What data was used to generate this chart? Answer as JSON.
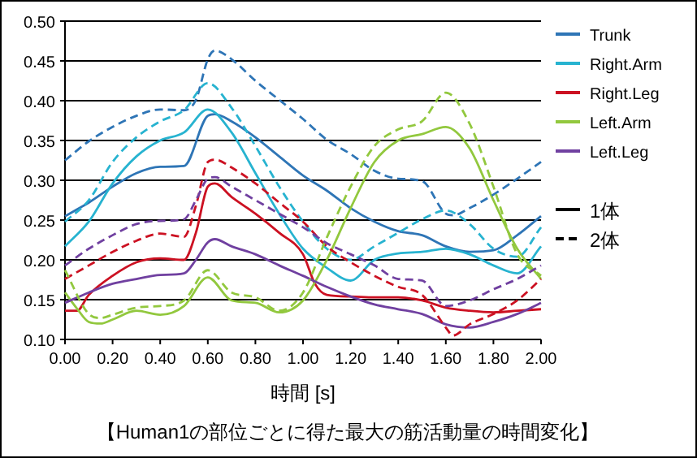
{
  "chart_data": {
    "type": "line",
    "xlabel": "時間 [s]",
    "xlim": [
      0,
      2
    ],
    "xticks": [
      {
        "value": 0,
        "label": "0.00"
      },
      {
        "value": 0.2,
        "label": "0.20"
      },
      {
        "value": 0.4,
        "label": "0.40"
      },
      {
        "value": 0.6,
        "label": "0.60"
      },
      {
        "value": 0.8,
        "label": "0.80"
      },
      {
        "value": 1,
        "label": "1.00"
      },
      {
        "value": 1.2,
        "label": "1.20"
      },
      {
        "value": 1.4,
        "label": "1.40"
      },
      {
        "value": 1.6,
        "label": "1.60"
      },
      {
        "value": 1.8,
        "label": "1.80"
      },
      {
        "value": 2,
        "label": "2.00"
      }
    ],
    "ylim": [
      0.1,
      0.5
    ],
    "yticks": [
      {
        "value": 0.1,
        "label": "0.10"
      },
      {
        "value": 0.15,
        "label": "0.15"
      },
      {
        "value": 0.2,
        "label": "0.20"
      },
      {
        "value": 0.25,
        "label": "0.25"
      },
      {
        "value": 0.3,
        "label": "0.30"
      },
      {
        "value": 0.35,
        "label": "0.35"
      },
      {
        "value": 0.4,
        "label": "0.40"
      },
      {
        "value": 0.45,
        "label": "0.45"
      },
      {
        "value": 0.5,
        "label": "0.50"
      }
    ],
    "grid": "y",
    "legend": "right",
    "annotations": [
      "1体",
      "2体",
      "【Human1の部位ごとに得た最大の筋活動量の時間変化】"
    ],
    "series": [
      {
        "name": "Trunk",
        "color": "#2e75b6",
        "line_style": "solid",
        "x": [
          0,
          0.1,
          0.2,
          0.3,
          0.4,
          0.5,
          0.6,
          0.63,
          0.7,
          0.8,
          0.9,
          1.0,
          1.1,
          1.2,
          1.3,
          1.4,
          1.5,
          1.6,
          1.7,
          1.8,
          1.9,
          2.0
        ],
        "values": [
          0.255,
          0.272,
          0.292,
          0.309,
          0.317,
          0.318,
          0.381,
          0.383,
          0.374,
          0.354,
          0.33,
          0.306,
          0.287,
          0.265,
          0.248,
          0.236,
          0.231,
          0.217,
          0.21,
          0.212,
          0.231,
          0.255
        ]
      },
      {
        "name": "Right.Arm",
        "color": "#27b3d0",
        "line_style": "solid",
        "x": [
          0,
          0.1,
          0.2,
          0.3,
          0.4,
          0.5,
          0.6,
          0.7,
          0.8,
          0.9,
          1.0,
          1.1,
          1.2,
          1.3,
          1.4,
          1.5,
          1.6,
          1.7,
          1.8,
          1.9,
          2.0
        ],
        "values": [
          0.217,
          0.248,
          0.296,
          0.33,
          0.35,
          0.36,
          0.389,
          0.36,
          0.309,
          0.258,
          0.214,
          0.19,
          0.174,
          0.2,
          0.208,
          0.21,
          0.214,
          0.207,
          0.193,
          0.183,
          0.217
        ]
      },
      {
        "name": "Right.Leg",
        "color": "#cc1122",
        "line_style": "solid",
        "x": [
          0,
          0.05,
          0.1,
          0.2,
          0.3,
          0.4,
          0.5,
          0.55,
          0.6,
          0.63,
          0.7,
          0.8,
          0.9,
          1.0,
          1.05,
          1.1,
          1.2,
          1.3,
          1.4,
          1.5,
          1.6,
          1.7,
          1.8,
          1.9,
          2.0
        ],
        "values": [
          0.136,
          0.136,
          0.156,
          0.18,
          0.197,
          0.202,
          0.2,
          0.234,
          0.292,
          0.296,
          0.279,
          0.258,
          0.234,
          0.207,
          0.17,
          0.156,
          0.154,
          0.153,
          0.153,
          0.149,
          0.14,
          0.136,
          0.134,
          0.136,
          0.138
        ]
      },
      {
        "name": "Left.Arm",
        "color": "#92c83e",
        "line_style": "solid",
        "x": [
          0,
          0.05,
          0.1,
          0.15,
          0.2,
          0.3,
          0.4,
          0.5,
          0.6,
          0.7,
          0.8,
          0.9,
          1.0,
          1.1,
          1.2,
          1.3,
          1.4,
          1.5,
          1.6,
          1.7,
          1.8,
          1.9,
          2.0
        ],
        "values": [
          0.159,
          0.139,
          0.122,
          0.12,
          0.125,
          0.136,
          0.131,
          0.142,
          0.178,
          0.149,
          0.146,
          0.134,
          0.149,
          0.2,
          0.265,
          0.323,
          0.35,
          0.358,
          0.367,
          0.34,
          0.275,
          0.214,
          0.176
        ]
      },
      {
        "name": "Left.Leg",
        "color": "#7040a0",
        "line_style": "solid",
        "x": [
          0,
          0.1,
          0.2,
          0.3,
          0.4,
          0.5,
          0.55,
          0.6,
          0.63,
          0.7,
          0.8,
          0.9,
          1.0,
          1.1,
          1.2,
          1.3,
          1.4,
          1.5,
          1.6,
          1.7,
          1.8,
          1.9,
          2.0
        ],
        "values": [
          0.146,
          0.159,
          0.17,
          0.176,
          0.181,
          0.183,
          0.2,
          0.222,
          0.226,
          0.217,
          0.207,
          0.193,
          0.18,
          0.166,
          0.154,
          0.144,
          0.138,
          0.132,
          0.119,
          0.115,
          0.122,
          0.132,
          0.146
        ]
      },
      {
        "color": "#2e75b6",
        "line_style": "dashed",
        "x": [
          0,
          0.1,
          0.2,
          0.3,
          0.4,
          0.5,
          0.55,
          0.6,
          0.63,
          0.7,
          0.8,
          0.9,
          1.0,
          1.1,
          1.2,
          1.3,
          1.4,
          1.5,
          1.6,
          1.63,
          1.7,
          1.8,
          1.9,
          2.0
        ],
        "values": [
          0.325,
          0.349,
          0.367,
          0.381,
          0.389,
          0.388,
          0.401,
          0.452,
          0.463,
          0.452,
          0.425,
          0.401,
          0.377,
          0.351,
          0.333,
          0.312,
          0.302,
          0.299,
          0.258,
          0.256,
          0.265,
          0.282,
          0.302,
          0.323
        ]
      },
      {
        "color": "#27b3d0",
        "line_style": "dashed",
        "x": [
          0,
          0.1,
          0.2,
          0.3,
          0.4,
          0.5,
          0.6,
          0.7,
          0.8,
          0.9,
          1.0,
          1.1,
          1.2,
          1.3,
          1.4,
          1.5,
          1.6,
          1.7,
          1.8,
          1.9,
          2.0
        ],
        "values": [
          0.248,
          0.275,
          0.323,
          0.354,
          0.374,
          0.388,
          0.422,
          0.391,
          0.343,
          0.292,
          0.248,
          0.214,
          0.2,
          0.217,
          0.234,
          0.251,
          0.262,
          0.245,
          0.214,
          0.204,
          0.241
        ]
      },
      {
        "color": "#cc1122",
        "line_style": "dashed",
        "x": [
          0,
          0.1,
          0.2,
          0.3,
          0.4,
          0.5,
          0.55,
          0.6,
          0.63,
          0.7,
          0.8,
          0.9,
          1.0,
          1.1,
          1.2,
          1.3,
          1.4,
          1.5,
          1.6,
          1.63,
          1.7,
          1.8,
          1.9,
          2.0
        ],
        "values": [
          0.176,
          0.193,
          0.21,
          0.224,
          0.233,
          0.229,
          0.268,
          0.323,
          0.326,
          0.316,
          0.296,
          0.272,
          0.248,
          0.217,
          0.197,
          0.18,
          0.166,
          0.156,
          0.115,
          0.105,
          0.119,
          0.132,
          0.149,
          0.176
        ]
      },
      {
        "color": "#92c83e",
        "line_style": "dashed",
        "x": [
          0,
          0.1,
          0.15,
          0.2,
          0.3,
          0.4,
          0.5,
          0.6,
          0.7,
          0.8,
          0.9,
          1.0,
          1.1,
          1.2,
          1.3,
          1.4,
          1.5,
          1.6,
          1.7,
          1.8,
          1.9,
          2.0
        ],
        "values": [
          0.187,
          0.132,
          0.127,
          0.131,
          0.14,
          0.142,
          0.149,
          0.187,
          0.159,
          0.153,
          0.136,
          0.159,
          0.228,
          0.292,
          0.343,
          0.364,
          0.374,
          0.41,
          0.371,
          0.292,
          0.207,
          0.18
        ]
      },
      {
        "color": "#7040a0",
        "line_style": "dashed",
        "x": [
          0,
          0.1,
          0.2,
          0.3,
          0.4,
          0.5,
          0.55,
          0.6,
          0.63,
          0.7,
          0.8,
          0.9,
          1.0,
          1.1,
          1.2,
          1.3,
          1.4,
          1.5,
          1.6,
          1.7,
          1.8,
          1.9,
          2.0
        ],
        "values": [
          0.193,
          0.214,
          0.231,
          0.245,
          0.249,
          0.251,
          0.275,
          0.302,
          0.304,
          0.292,
          0.275,
          0.258,
          0.241,
          0.221,
          0.207,
          0.193,
          0.176,
          0.174,
          0.142,
          0.149,
          0.163,
          0.176,
          0.193
        ]
      }
    ]
  }
}
